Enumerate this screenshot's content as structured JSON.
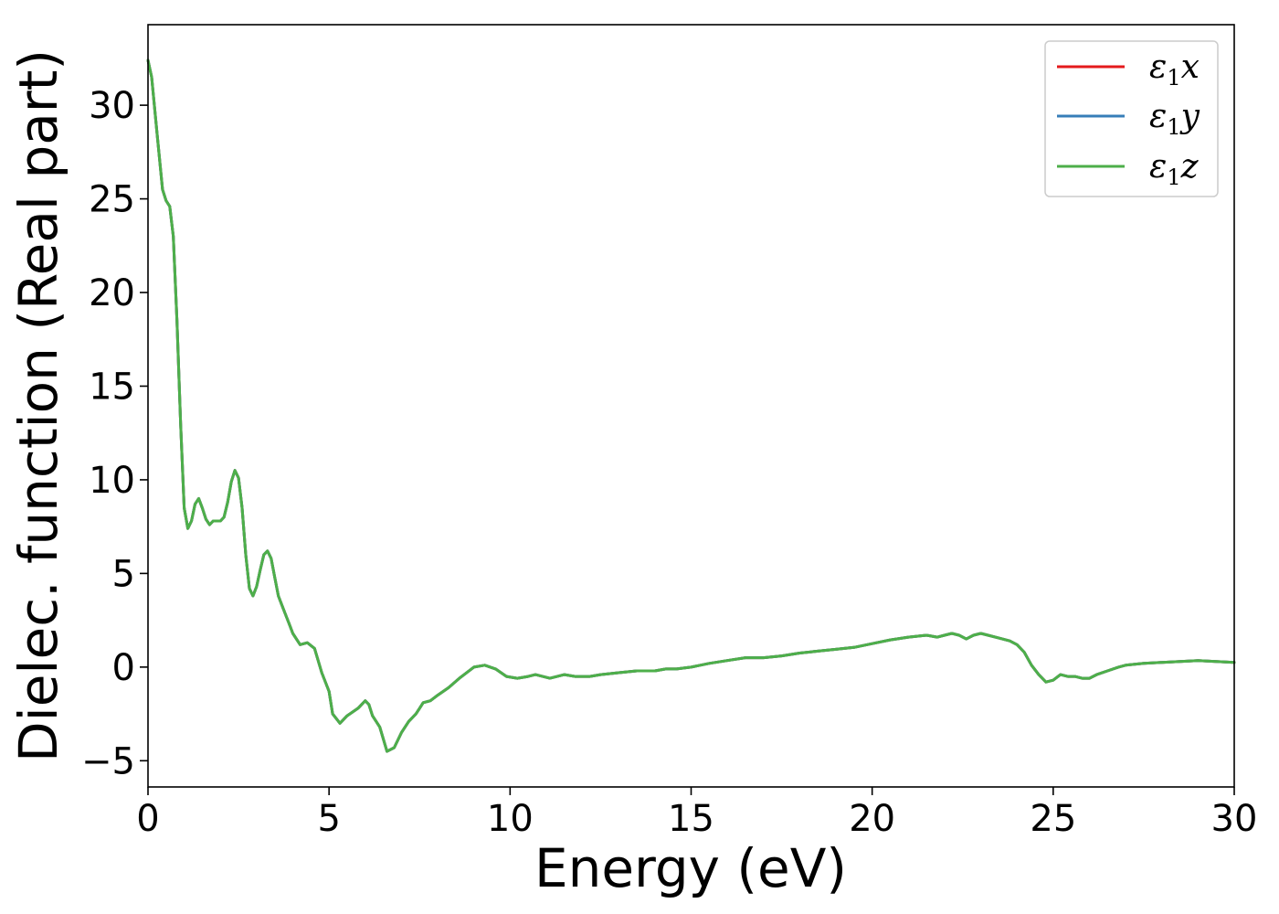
{
  "chart_data": {
    "type": "line",
    "xlabel": "Energy (eV)",
    "ylabel": "Dielec. function (Real part)",
    "xlim": [
      0,
      30
    ],
    "ylim": [
      -6.4,
      34.3
    ],
    "xticks": [
      0,
      5,
      10,
      15,
      20,
      25,
      30
    ],
    "yticks": [
      -5,
      0,
      5,
      10,
      15,
      20,
      25,
      30
    ],
    "legend_position": "top-right",
    "grid": false,
    "series": [
      {
        "name": "ε1x",
        "symbol": "ε",
        "subscript": "1",
        "axis": "x",
        "color": "#e41a1c"
      },
      {
        "name": "ε1y",
        "symbol": "ε",
        "subscript": "1",
        "axis": "y",
        "color": "#377eb8"
      },
      {
        "name": "ε1z",
        "symbol": "ε",
        "subscript": "1",
        "axis": "z",
        "color": "#4daf4a"
      }
    ],
    "shared_curve": {
      "x": [
        0,
        0.1,
        0.25,
        0.4,
        0.5,
        0.6,
        0.7,
        0.8,
        0.9,
        1.0,
        1.1,
        1.2,
        1.3,
        1.4,
        1.5,
        1.6,
        1.7,
        1.8,
        1.9,
        2.0,
        2.1,
        2.2,
        2.3,
        2.4,
        2.5,
        2.6,
        2.7,
        2.8,
        2.9,
        3.0,
        3.1,
        3.2,
        3.3,
        3.4,
        3.5,
        3.6,
        3.7,
        3.8,
        3.9,
        4.0,
        4.2,
        4.4,
        4.6,
        4.8,
        5.0,
        5.1,
        5.3,
        5.5,
        5.8,
        6.0,
        6.1,
        6.2,
        6.4,
        6.6,
        6.8,
        7.0,
        7.2,
        7.4,
        7.5,
        7.6,
        7.8,
        8.0,
        8.3,
        8.6,
        9.0,
        9.3,
        9.6,
        9.9,
        10.2,
        10.5,
        10.7,
        10.9,
        11.1,
        11.3,
        11.5,
        11.8,
        12.0,
        12.2,
        12.5,
        13.0,
        13.5,
        14.0,
        14.3,
        14.6,
        15.0,
        15.5,
        16.0,
        16.5,
        17.0,
        17.5,
        18.0,
        18.5,
        19.0,
        19.5,
        20.0,
        20.5,
        21.0,
        21.5,
        21.8,
        22.0,
        22.2,
        22.4,
        22.6,
        22.8,
        23.0,
        23.2,
        23.5,
        23.8,
        24.0,
        24.2,
        24.4,
        24.6,
        24.8,
        25.0,
        25.2,
        25.4,
        25.6,
        25.8,
        26.0,
        26.2,
        26.5,
        26.8,
        27.0,
        27.5,
        28.0,
        28.5,
        29.0,
        29.5,
        30.0
      ],
      "y": [
        32.4,
        31.5,
        28.5,
        25.5,
        24.9,
        24.6,
        23.0,
        18.5,
        13.0,
        8.5,
        7.4,
        7.8,
        8.7,
        9.0,
        8.5,
        7.9,
        7.6,
        7.8,
        7.8,
        7.8,
        8.0,
        8.8,
        9.9,
        10.5,
        10.1,
        8.5,
        6.0,
        4.2,
        3.8,
        4.3,
        5.2,
        6.0,
        6.2,
        5.8,
        4.8,
        3.8,
        3.3,
        2.8,
        2.3,
        1.8,
        1.2,
        1.3,
        1.0,
        -0.3,
        -1.3,
        -2.5,
        -3.0,
        -2.6,
        -2.2,
        -1.8,
        -2.0,
        -2.6,
        -3.2,
        -4.5,
        -4.3,
        -3.5,
        -2.9,
        -2.5,
        -2.2,
        -1.9,
        -1.8,
        -1.5,
        -1.1,
        -0.6,
        0.0,
        0.1,
        -0.1,
        -0.5,
        -0.6,
        -0.5,
        -0.4,
        -0.5,
        -0.6,
        -0.5,
        -0.4,
        -0.5,
        -0.5,
        -0.5,
        -0.4,
        -0.3,
        -0.2,
        -0.2,
        -0.1,
        -0.1,
        0.0,
        0.2,
        0.35,
        0.5,
        0.5,
        0.6,
        0.75,
        0.85,
        0.95,
        1.05,
        1.25,
        1.45,
        1.6,
        1.7,
        1.6,
        1.7,
        1.8,
        1.7,
        1.5,
        1.7,
        1.8,
        1.7,
        1.55,
        1.4,
        1.2,
        0.8,
        0.1,
        -0.4,
        -0.8,
        -0.7,
        -0.4,
        -0.5,
        -0.5,
        -0.6,
        -0.6,
        -0.4,
        -0.2,
        0.0,
        0.1,
        0.2,
        0.25,
        0.3,
        0.35,
        0.3,
        0.25
      ]
    }
  }
}
